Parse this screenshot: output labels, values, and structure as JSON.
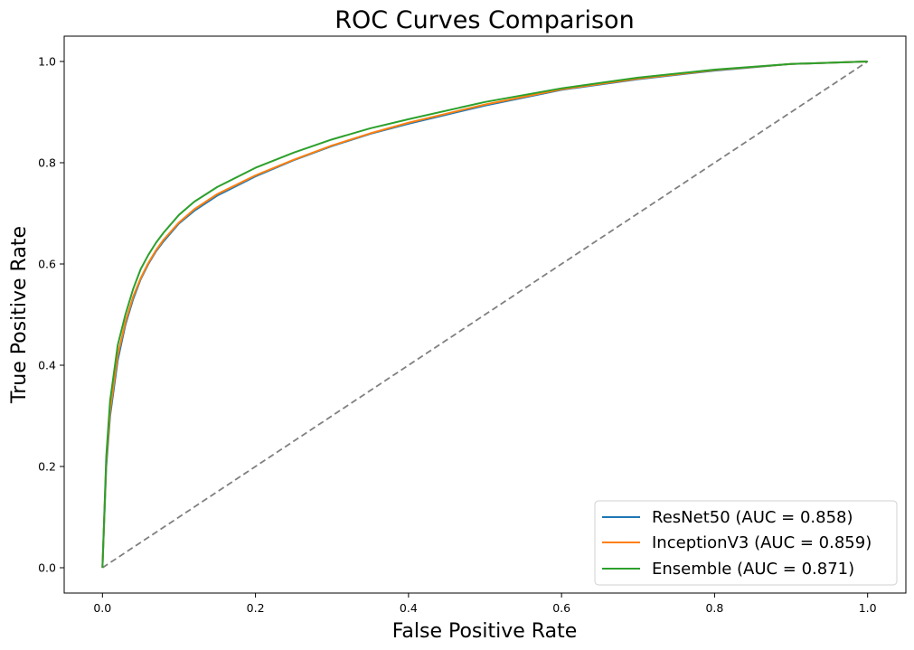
{
  "chart_data": {
    "type": "line",
    "title": "ROC Curves Comparison",
    "xlabel": "False Positive Rate",
    "ylabel": "True Positive Rate",
    "xlim": [
      -0.05,
      1.05
    ],
    "ylim": [
      -0.05,
      1.05
    ],
    "xticks": [
      "0.0",
      "0.2",
      "0.4",
      "0.6",
      "0.8",
      "1.0"
    ],
    "yticks": [
      "0.0",
      "0.2",
      "0.4",
      "0.6",
      "0.8",
      "1.0"
    ],
    "grid": false,
    "legend_position": "lower-right",
    "series": [
      {
        "name": "ResNet50 (AUC = 0.858)",
        "color": "#1f77b4",
        "x": [
          0,
          0.005,
          0.01,
          0.02,
          0.03,
          0.04,
          0.05,
          0.06,
          0.07,
          0.08,
          0.1,
          0.12,
          0.15,
          0.2,
          0.25,
          0.3,
          0.35,
          0.4,
          0.5,
          0.6,
          0.7,
          0.8,
          0.9,
          1.0
        ],
        "y": [
          0,
          0.2,
          0.3,
          0.41,
          0.48,
          0.53,
          0.57,
          0.6,
          0.625,
          0.645,
          0.68,
          0.705,
          0.735,
          0.773,
          0.805,
          0.833,
          0.857,
          0.877,
          0.913,
          0.944,
          0.965,
          0.982,
          0.995,
          1.0
        ]
      },
      {
        "name": "InceptionV3 (AUC = 0.859)",
        "color": "#ff7f0e",
        "x": [
          0,
          0.005,
          0.01,
          0.02,
          0.03,
          0.04,
          0.05,
          0.06,
          0.07,
          0.08,
          0.1,
          0.12,
          0.15,
          0.2,
          0.25,
          0.3,
          0.35,
          0.4,
          0.5,
          0.6,
          0.7,
          0.8,
          0.9,
          1.0
        ],
        "y": [
          0,
          0.21,
          0.31,
          0.42,
          0.485,
          0.535,
          0.572,
          0.602,
          0.627,
          0.648,
          0.682,
          0.708,
          0.738,
          0.775,
          0.806,
          0.834,
          0.858,
          0.879,
          0.915,
          0.945,
          0.966,
          0.983,
          0.995,
          1.0
        ]
      },
      {
        "name": "Ensemble (AUC = 0.871)",
        "color": "#2ca02c",
        "x": [
          0,
          0.005,
          0.01,
          0.02,
          0.03,
          0.04,
          0.05,
          0.06,
          0.07,
          0.08,
          0.1,
          0.12,
          0.15,
          0.2,
          0.25,
          0.3,
          0.35,
          0.4,
          0.5,
          0.6,
          0.7,
          0.8,
          0.9,
          1.0
        ],
        "y": [
          0,
          0.22,
          0.33,
          0.44,
          0.5,
          0.55,
          0.59,
          0.618,
          0.642,
          0.662,
          0.697,
          0.723,
          0.752,
          0.79,
          0.82,
          0.846,
          0.868,
          0.886,
          0.92,
          0.947,
          0.968,
          0.984,
          0.995,
          1.0
        ]
      }
    ],
    "reference_line": {
      "x": [
        0,
        1
      ],
      "y": [
        0,
        1
      ],
      "color": "#808080",
      "style": "dashed"
    }
  }
}
